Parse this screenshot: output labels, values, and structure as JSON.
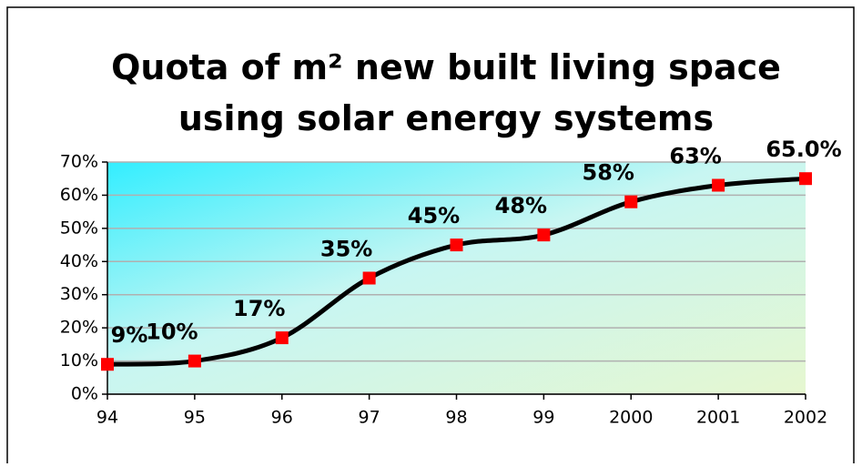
{
  "chart_data": {
    "type": "line",
    "title": "Quota of m² new built living space using solar energy systems",
    "categories": [
      "94",
      "95",
      "96",
      "97",
      "98",
      "99",
      "2000",
      "2001",
      "2002"
    ],
    "series": [
      {
        "name": "Quota",
        "color": "#000000",
        "marker_color": "#ff0000",
        "values": [
          9,
          10,
          17,
          35,
          45,
          48,
          58,
          63,
          65
        ],
        "value_labels": [
          "9%",
          "10%",
          "17%",
          "35%",
          "45%",
          "48%",
          "58%",
          "63%",
          "65.0%"
        ]
      }
    ],
    "ylim": [
      0,
      70
    ],
    "yticks": [
      {
        "value": 0,
        "label": "0%"
      },
      {
        "value": 10,
        "label": "10%"
      },
      {
        "value": 20,
        "label": "20%"
      },
      {
        "value": 30,
        "label": "30%"
      },
      {
        "value": 40,
        "label": "40%"
      },
      {
        "value": 50,
        "label": "50%"
      },
      {
        "value": 60,
        "label": "60%"
      },
      {
        "value": 70,
        "label": "70%"
      }
    ],
    "grid": true
  }
}
